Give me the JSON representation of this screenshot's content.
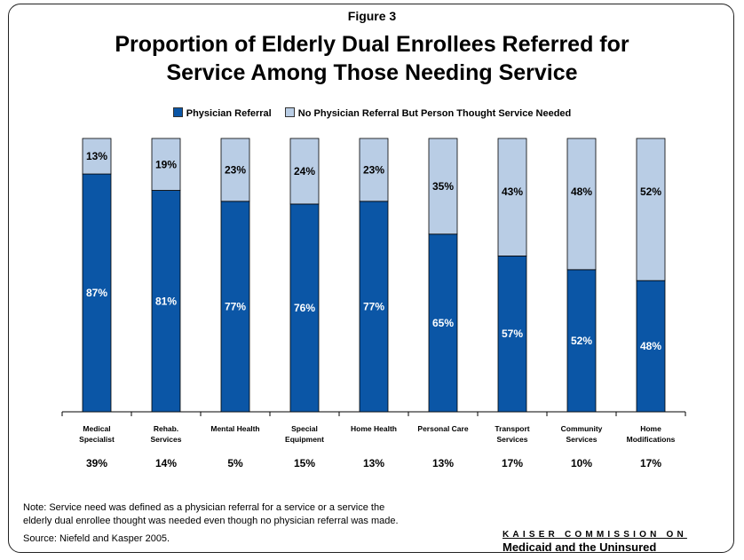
{
  "figure_label": "Figure 3",
  "title_lines": [
    "Proportion of Elderly Dual Enrollees Referred for",
    "Service Among Those Needing Service"
  ],
  "colors": {
    "physician": "#0B56A6",
    "no_physician": "#B9CDE5",
    "frame": "#222222"
  },
  "chart_data": {
    "type": "bar",
    "stacked": true,
    "ylim": [
      0,
      100
    ],
    "grid": false,
    "legend_position": "top",
    "categories": [
      [
        "Medical",
        "Specialist"
      ],
      [
        "Rehab.",
        "Services"
      ],
      [
        "Mental Health"
      ],
      [
        "Special",
        "Equipment"
      ],
      [
        "Home Health"
      ],
      [
        "Personal Care"
      ],
      [
        "Transport",
        "Services"
      ],
      [
        "Community",
        "Services"
      ],
      [
        "Home",
        "Modifications"
      ]
    ],
    "series": [
      {
        "name": "Physician Referral",
        "values": [
          87,
          81,
          77,
          76,
          77,
          65,
          57,
          52,
          48
        ],
        "labels": [
          "87%",
          "81%",
          "77%",
          "76%",
          "77%",
          "65%",
          "57%",
          "52%",
          "48%"
        ]
      },
      {
        "name": "No Physician Referral But Person Thought Service Needed",
        "values": [
          13,
          19,
          23,
          24,
          23,
          35,
          43,
          48,
          52
        ],
        "labels": [
          "13%",
          "19%",
          "23%",
          "24%",
          "23%",
          "35%",
          "43%",
          "48%",
          "52%"
        ]
      }
    ],
    "bottom_values": [
      39,
      14,
      5,
      15,
      13,
      13,
      17,
      10,
      17
    ],
    "bottom_labels": [
      "39%",
      "14%",
      "5%",
      "15%",
      "13%",
      "13%",
      "17%",
      "10%",
      "17%"
    ]
  },
  "note_lines": [
    "Note: Service need was defined as a physician referral for a service or a service the",
    "elderly dual enrollee thought was needed even though no physician referral was made."
  ],
  "source": "Source: Niefeld and Kasper 2005.",
  "brand": {
    "line1": "KAISER COMMISSION ON",
    "line2": "Medicaid and the Uninsured"
  }
}
